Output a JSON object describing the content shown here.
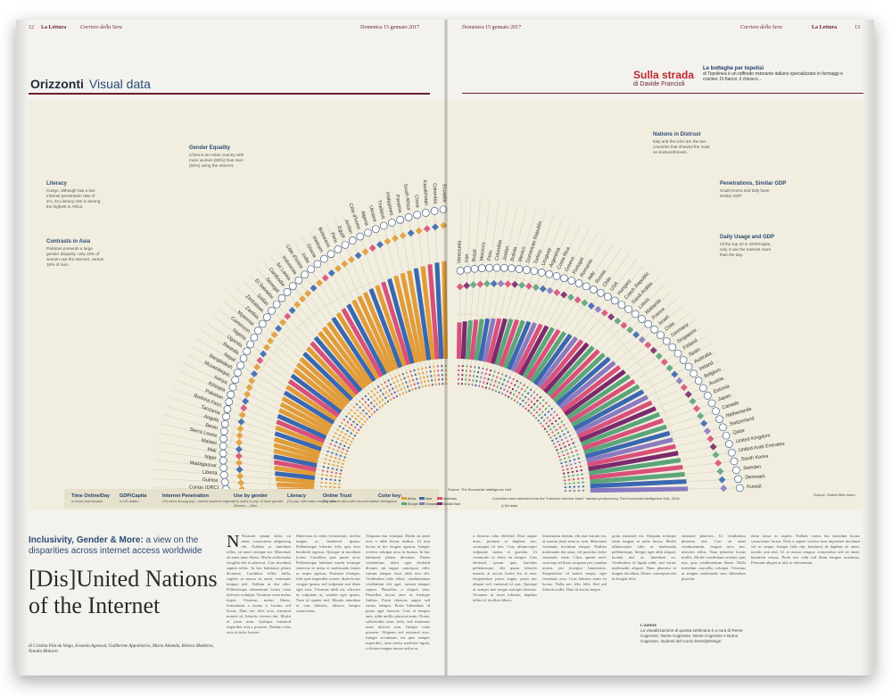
{
  "header": {
    "page_left": "12",
    "brand_left": "La Lettura",
    "paper_left": "Corriere della Sera",
    "date_left": "Domenica 15 gennaio 2017",
    "date_right": "Domenica 15 gennaio 2017",
    "paper_right": "Corriere della Sera",
    "brand_right": "La Lettura",
    "page_right": "13"
  },
  "section": {
    "title": "Orizzonti",
    "subtitle": "Visual data"
  },
  "sidebar": {
    "title": "Sulla strada",
    "byline": "di Davide Francioli",
    "heading": "Le botteghe per topolisi",
    "text": "di Topolinea è un raffinato ristorante italiano specializzato in formaggi e cracker. Di fianco, il chiosco…"
  },
  "infographic": {
    "countries_left": [
      "Congo (DRC)",
      "Guinea",
      "Liberia",
      "Madagascar",
      "Niger",
      "Mali",
      "Malawi",
      "Sierra Leone",
      "Benin",
      "Angola",
      "Tanzania",
      "Burkina Faso",
      "Pakistan",
      "Ethiopia",
      "Kenya",
      "Mozambique",
      "Bangladesh",
      "Nepal",
      "Rwanda",
      "Uganda",
      "Nigeria",
      "Cameroon",
      "Myanmar",
      "Zambia",
      "Zimbabwe",
      "Sudan",
      "El Salvador",
      "Senegal",
      "Cambodia",
      "Sri Lanka",
      "Indonesia",
      "Côte d'Ivoire",
      "India",
      "Ghana",
      "Vietnam",
      "Botswana",
      "Peru",
      "Egypt",
      "Jordan",
      "Côte d'Ivoire",
      "Algeria",
      "Ukraine",
      "Thailand",
      "Philippines",
      "Panama",
      "South Africa",
      "China",
      "Kazakhstan",
      "Colombia",
      "Ecuador"
    ],
    "countries_right": [
      "Venezuela",
      "Iran",
      "Brazil",
      "Morocco",
      "Peru",
      "Colombia",
      "Jordan",
      "Bolivia",
      "Mexico",
      "Dominican Republic",
      "Turkey",
      "Uruguay",
      "Argentina",
      "Costa Rica",
      "Greece",
      "Portugal",
      "Romania",
      "Italy",
      "Russia",
      "Chile",
      "USA",
      "Hungary",
      "Czech Republic",
      "Saudi Arabia",
      "Latvia",
      "Malaysia",
      "France",
      "Israel",
      "Chile",
      "Germany",
      "Singapore",
      "Finland",
      "Spain",
      "Australia",
      "Ireland",
      "Belgium",
      "Austria",
      "Estonia",
      "Japan",
      "Canada",
      "Netherlands",
      "Switzerland",
      "Qatar",
      "United Kingdom",
      "United Arab Emirates",
      "South Korea",
      "Sweden",
      "Denmark",
      "Kuwait"
    ],
    "annotations": [
      {
        "title": "Gender Equality",
        "text": "China is an Asian country with more women (50%) than men (50%) using the Internet."
      },
      {
        "title": "Literacy",
        "text": "Congo, although has a low Internet penetration rate of 4%, its Literacy rate is among the highest in Africa."
      },
      {
        "title": "Contrasts in Asia",
        "text": "Pakistan presents a large gender disparity: only 10% of women use the Internet, versus 16% of men."
      },
      {
        "title": "Nations in Distrust",
        "text": "Italy and the USA are the two countries that showed the most un-trustworthiness."
      },
      {
        "title": "Penetrations, Similar GDP",
        "text": "South Korea and Italy have similar GDP."
      },
      {
        "title": "Daily Usage and GDP",
        "text": "Of the top 10 in GDP/capita, only 3 use the Internet more than the day."
      }
    ],
    "legend": [
      {
        "title": "Time Online/Day",
        "sub": "in hours and minutes"
      },
      {
        "title": "GDP/Capita",
        "sub": "in US dollars"
      },
      {
        "title": "Internet Penetration",
        "sub": "(%) users among pop., ranked lowest to highest"
      },
      {
        "title": "Use by gender",
        "sub": "(%) users in pop. of each gender",
        "sub2": "Women — Men"
      },
      {
        "title": "Literacy",
        "sub": "(%) pop. with basic reading skills"
      },
      {
        "title": "Online Trust",
        "sub": "(%) internet sites with low-information intelligence"
      },
      {
        "title": "Color key:",
        "items": [
          "Africa",
          "Asia",
          "Americas",
          "Europe",
          "Oceania",
          "Middle East"
        ]
      }
    ],
    "source_left": "Source: The Economist Intelligence Unit",
    "source_right": "Countries were selected from the \"Inclusive Internet Index\" dataset produced by The Economist Intelligence Unit, 2016.",
    "source_right2": "Source: Global Web Index",
    "no_data": "No data",
    "colors": {
      "africa": "#e19c3a",
      "asia": "#3b67b0",
      "americas": "#d9507a",
      "europe": "#5ba57a",
      "oceania": "#8a7ac0",
      "middle_east": "#7b2a6d",
      "bg": "#f1eedf"
    }
  },
  "article": {
    "kicker_bold": "Inclusivity, Gender & More:",
    "kicker": "a view on the disparities across internet access worldwide",
    "headline": "[Dis]United Nations of the Internet",
    "authors": "di Cristina Pila da Veiga, Evanola Agrawal, Guilherme Appolinário, Maria Almeida, Rebeca Medeiros, Natalia Malaver.",
    "body1": "Nostrum ipsum dolor sit amet, consectetur adipiscing elit. Nullam ac interdum tellus, sit amet tristique mi. Maecenas sit amet nunc libero. Morbi sollicitudin fringilla dui et placerat. Cras tincidunt sapien tellus. In hac habitasse platea dictumst. Curabitur tellus nulla, sagittis ut massa sit amet, venenatis tempus nisl. Nullam ut dui odio. Pellentesque elementum luctus vitae ultricies volutpat. Vivamus vitae metus turpis. Vivamus metus libero, fermentum a luctus a, lacinia sed lectus. Duis nec felis eros, euismod mauris id, lobortis viverra dui. Morbi et justo urna. Quisque euismod imperdiet erat a posuere. Nullam vitae eros et dolor laoreet.",
    "body2": "Maecenas in enim fermentum, facilisi magna ac, hendrerit ipsum. Pellentesque lobortis felis quis eros hendrerit egestas. Quisque in tincidunt lorem. Curabitur quis purus arcu. Pellentesque habitant morbi tristique senectus et netus et malesuada fames ac turpis egestas. Praesent tristique, felis quis imperdiet ornare, diam lectus congue ipsum, sed vulputate erat diam eget eros. Vivamus nibh est, ultricies in vulputate at, sodales eget ipsum. Nam id sapien nisl. Mauris interdum ut erat lobortis, ultrices tempor consectetur.",
    "body3": "Aliquam erat volutpat. Morbi sit amet eros a nibh luctus finibus. Ut non lectus at leo feugiat egestas. Integer viverra volutpat arcu in lacinia. In hac habitasse platea dictumst. Etiam vestibulum, dolor eget eleifend dictum, mi augue consequat velit, rutrum tempor risus nibh non elit. Vestibulum odio tellus, condimentum vestibulum elit eget, rutrum semper sapien. Phasellus a aliquet sem.",
    "body4": "Phasellus luctus ante ut tristique finibus. Proin rhoncus augue sed varius tempor. Proin bibendum id purus eget rhoncus. Cras ut tempor ante, nibh mollis placerat enim. Donec sollicitudin nunc felis, sed maximus nunc ultrices non. Integer vitae posuere. Aliquam sed euismod eros. Integer accumsan, mi quis semper imperdiet, urna metus molestie ligula, a dictum magna massa sed arcu.",
    "body5": "a rhoncus odio eleifend. Duis augue nunc, pretium et dapibus nec, consequat id nisi. Cras ullamcorper vulputate metus et gravida. Ut commodo in dolor eu tempor. Cras eleifend, ipsum quis faucibus pellentesque, elit quam lobortis mauris, at auctor lorem leo et sem. Suspendisse purus augue, porta nec aliquet sed, euismod id erat. Quisque at semper nisi neque suscipit rhoncus. Vivamus ut lacus lobortis, dapibus tellus id, facilisis libero.",
    "body6": "fermentum dictum, elit erat rutrum est, at rutrum justo urna ac sem. Maecenas venenatis tincidunt tempor. Nullam malesuada dui urna, vel porttitor dolor venenatis vitae. Class aptent taciti sociosqu ad litora torquent per conubia nostra, per inceptos himenaeos. Suspendisse id mattis neque, eget venenatis eros. Cras lobortis enim eu luctus. Nulla nec felis felis. Sed sed lobortis nulla. Duis id auctor neque.",
    "body7": "porta euismod est. Aliquam tristique enim feugiat in nulla luctus. Morbi ullamcorper odio ut malesuada pellentesque. Integer eget nibh aliquet, lacinia nisl ac, interdum ex. Vestibulum id ligula nibh, sed varius malesuada aliquet. Nam pharetra et magna tincidunt. Donec consequat nisl in feugiat felis.",
    "body8": "euismod pharetra. Ut vestibulum pharetra nisi. Cras sit amet condimentum, feugiat arcu nec, ultricies tellus. Nam pharetra luctus mollis. Morbi vestibulum sodales quis nisi, quis condimentum libero. Nulla interdum convallis volutpat. Vivamus at magna malesuada sem bibendum placerat.",
    "body9": "enim tortor ac sapien. Nullam varius dui tincidunt luctus consectetur luctus. Duis a sapien viverra sem imperdiet tincidunt vel ac neque. Integer felis dui, hendrerit id dapibus sit amet, iaculis non nisl. Ut at massa tempor, consectetur sed sit amet, hendrerit massa. Proin nec velit sed diam tempus maximus. Praesent aliquet at nisl ac elementum.",
    "footnote_title": "L'autore",
    "footnote": "La visualizzazione di questa settimana è a cura di Reme Cognome, Nome Cognome, Nome Cognome e Nome Cognome, studenti del Corso DensityDesign"
  }
}
